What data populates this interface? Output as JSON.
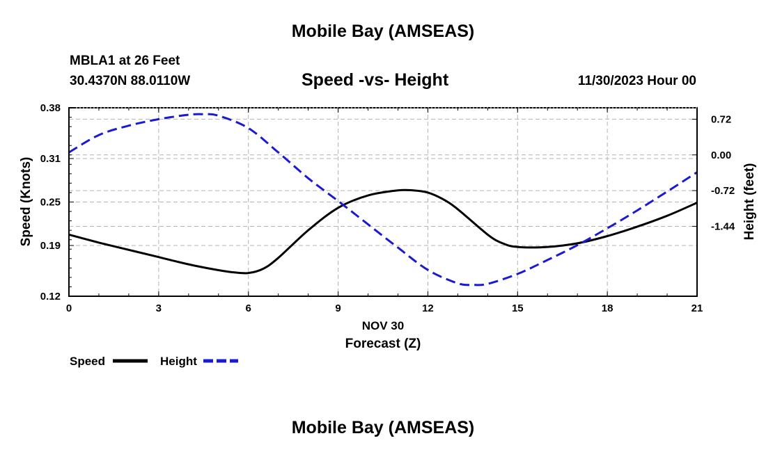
{
  "header": {
    "title": "Mobile Bay (AMSEAS)",
    "station": "MBLA1 at 26 Feet",
    "coords": "30.4370N  88.0110W",
    "datetime": "11/30/2023 Hour 00",
    "footer_title": "Mobile Bay (AMSEAS)"
  },
  "chart_data": {
    "type": "line",
    "title": "Speed -vs- Height",
    "xlabel": "Forecast (Z)",
    "xdate": "NOV 30",
    "xlim": [
      0,
      21
    ],
    "xticks": [
      0,
      3,
      6,
      9,
      12,
      15,
      18,
      21
    ],
    "xtick_labels": [
      "0",
      "3",
      "6",
      "9",
      "12",
      "15",
      "18",
      "21"
    ],
    "y_left": {
      "label": "Speed (Knots)",
      "lim": [
        0.12,
        0.38
      ],
      "ticks": [
        0.12,
        0.19,
        0.25,
        0.31,
        0.38
      ],
      "tick_labels": [
        "0.12",
        "0.19",
        "0.25",
        "0.31",
        "0.38"
      ]
    },
    "y_right": {
      "label": "Height (feet)",
      "lim": [
        -2.85,
        0.95
      ],
      "ticks": [
        0.72,
        0.0,
        -0.72,
        -1.44
      ],
      "tick_labels": [
        "0.72",
        "0.00",
        "-0.72",
        "-1.44"
      ]
    },
    "grid": true,
    "legend": [
      {
        "name": "Speed",
        "color": "#000000",
        "style": "solid"
      },
      {
        "name": "Height",
        "color": "#1a1ad6",
        "style": "dashed"
      }
    ],
    "series": [
      {
        "name": "Speed",
        "axis": "left",
        "color": "#000000",
        "x": [
          0,
          1,
          2,
          3,
          4,
          5,
          5.5,
          6,
          6.5,
          7,
          8,
          9,
          10,
          11,
          11.5,
          12,
          12.5,
          13,
          14,
          14.5,
          15,
          16,
          17,
          18,
          19,
          20,
          21
        ],
        "values": [
          0.205,
          0.194,
          0.184,
          0.174,
          0.164,
          0.156,
          0.153,
          0.152,
          0.158,
          0.173,
          0.211,
          0.242,
          0.259,
          0.266,
          0.266,
          0.263,
          0.254,
          0.24,
          0.205,
          0.193,
          0.188,
          0.188,
          0.193,
          0.203,
          0.216,
          0.231,
          0.249
        ]
      },
      {
        "name": "Height",
        "axis": "right",
        "color": "#1a1ad6",
        "x": [
          0,
          1,
          2,
          3,
          4,
          4.5,
          5,
          6,
          7,
          8,
          9,
          10,
          11,
          12,
          13,
          13.5,
          14,
          15,
          16,
          17,
          18,
          19,
          20,
          21
        ],
        "values": [
          0.05,
          0.4,
          0.59,
          0.72,
          0.81,
          0.82,
          0.79,
          0.54,
          0.05,
          -0.47,
          -0.93,
          -1.4,
          -1.87,
          -2.32,
          -2.59,
          -2.62,
          -2.6,
          -2.4,
          -2.12,
          -1.82,
          -1.48,
          -1.12,
          -0.74,
          -0.35
        ]
      }
    ]
  }
}
